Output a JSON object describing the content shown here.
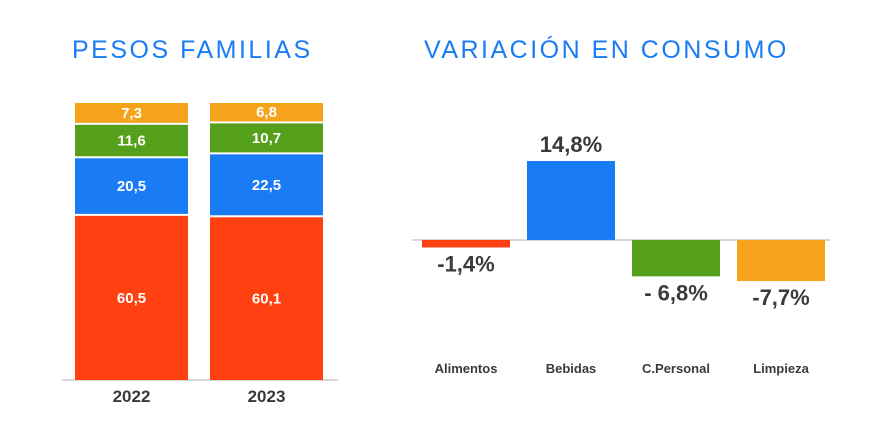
{
  "titles": {
    "left": "PESOS FAMILIAS",
    "right": "VARIACIÓN EN CONSUMO"
  },
  "colors": {
    "title": "#1a7cf5",
    "alimentos": "#ff4011",
    "bebidas": "#1a7cf5",
    "cuidado_personal": "#55a01a",
    "limpieza": "#f5a31a",
    "text": "#3a3a3a",
    "axis": "#cccccc"
  },
  "chart_data": [
    {
      "type": "bar",
      "stacked": true,
      "categories": [
        "2022",
        "2023"
      ],
      "series": [
        {
          "key": "alimentos",
          "values": [
            60.5,
            60.1
          ],
          "labels": [
            "60,5",
            "60,1"
          ]
        },
        {
          "key": "bebidas",
          "values": [
            20.5,
            22.5
          ],
          "labels": [
            "20,5",
            "22,5"
          ]
        },
        {
          "key": "cuidado_personal",
          "values": [
            11.6,
            10.7
          ],
          "labels": [
            "11,6",
            "10,7"
          ]
        },
        {
          "key": "limpieza",
          "values": [
            7.3,
            6.8
          ],
          "labels": [
            "7,3",
            "6,8"
          ]
        }
      ],
      "title": "PESOS FAMILIAS",
      "ylim": [
        0,
        100
      ]
    },
    {
      "type": "bar",
      "categories": [
        "Alimentos",
        "Bebidas",
        "C.Personal",
        "Limpieza"
      ],
      "keys": [
        "alimentos",
        "bebidas",
        "cuidado_personal",
        "limpieza"
      ],
      "values": [
        -1.4,
        14.8,
        -6.8,
        -7.7
      ],
      "labels": [
        "-1,4%",
        "14,8%",
        "- 6,8%",
        "-7,7%"
      ],
      "title": "VARIACIÓN EN CONSUMO"
    }
  ]
}
